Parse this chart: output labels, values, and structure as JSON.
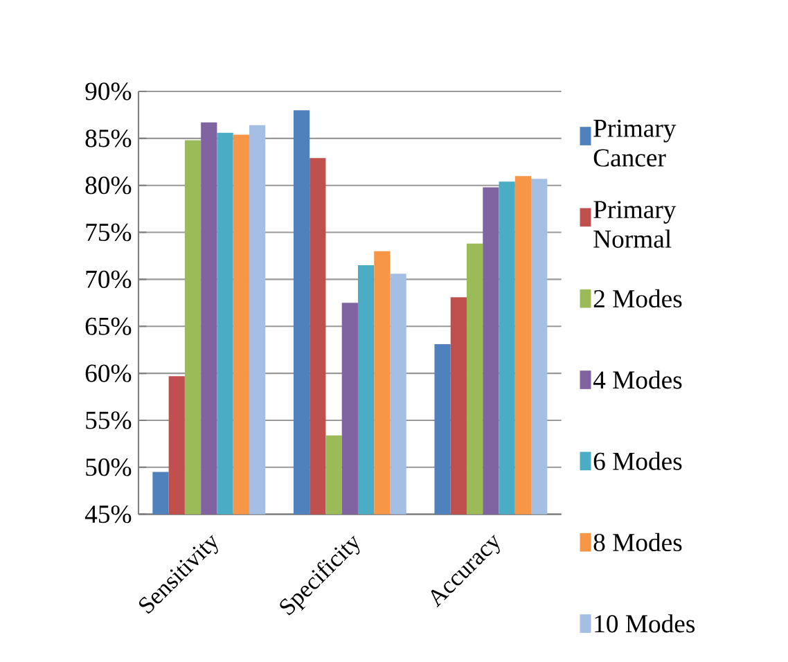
{
  "chart_data": {
    "type": "bar",
    "categories": [
      "Sensitivity",
      "Specificity",
      "Accuracy"
    ],
    "series": [
      {
        "name": "Primary Cancer",
        "color": "#4f81bd",
        "values": [
          49.5,
          88.0,
          63.1
        ]
      },
      {
        "name": "Primary Normal",
        "color": "#c0504d",
        "values": [
          59.7,
          82.9,
          68.1
        ]
      },
      {
        "name": "2 Modes",
        "color": "#9bbb59",
        "values": [
          84.8,
          53.4,
          73.8
        ]
      },
      {
        "name": "4 Modes",
        "color": "#8064a2",
        "values": [
          86.7,
          67.5,
          79.8
        ]
      },
      {
        "name": "6 Modes",
        "color": "#4bacc6",
        "values": [
          85.6,
          71.5,
          80.4
        ]
      },
      {
        "name": "8 Modes",
        "color": "#f79646",
        "values": [
          85.4,
          73.0,
          81.0
        ]
      },
      {
        "name": "10 Modes",
        "color": "#a5bfe4",
        "values": [
          86.4,
          70.6,
          80.7
        ]
      }
    ],
    "ylim": [
      45,
      90
    ],
    "yticks": [
      {
        "value": 45,
        "label": "45%"
      },
      {
        "value": 50,
        "label": "50%"
      },
      {
        "value": 55,
        "label": "55%"
      },
      {
        "value": 60,
        "label": "60%"
      },
      {
        "value": 65,
        "label": "65%"
      },
      {
        "value": 70,
        "label": "70%"
      },
      {
        "value": 75,
        "label": "75%"
      },
      {
        "value": 80,
        "label": "80%"
      },
      {
        "value": 85,
        "label": "85%"
      },
      {
        "value": 90,
        "label": "90%"
      }
    ],
    "grid": "y",
    "legend": "right"
  }
}
